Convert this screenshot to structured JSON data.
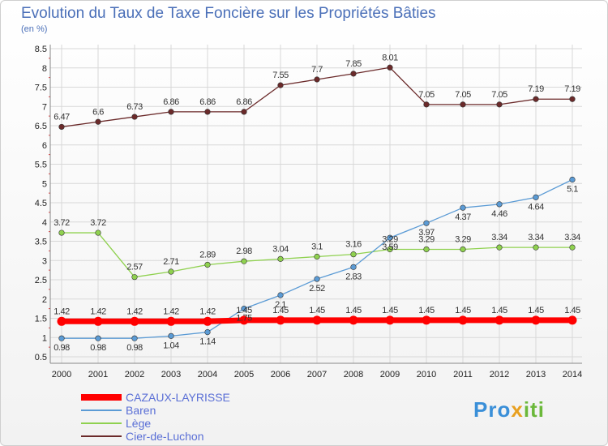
{
  "header": {
    "title": "Evolution du Taux de Taxe Foncière sur les Propriétés Bâties",
    "unit": "(en %)"
  },
  "logo": {
    "text_a": "Pro",
    "text_b": "x",
    "text_c": "iti"
  },
  "chart_data": {
    "type": "line",
    "title": "Evolution du Taux de Taxe Foncière sur les Propriétés Bâties",
    "ylabel": "(en %)",
    "xlabel": "",
    "ylim": [
      0.5,
      8.5
    ],
    "yticks": [
      "8.5",
      "8",
      "7.5",
      "7",
      "6.5",
      "6",
      "5.5",
      "5",
      "4.5",
      "4",
      "3.5",
      "3",
      "2.5",
      "2",
      "1.5",
      "1",
      "0.5"
    ],
    "categories": [
      "2000",
      "2001",
      "2002",
      "2003",
      "2004",
      "2005",
      "2006",
      "2007",
      "2008",
      "2009",
      "2010",
      "2011",
      "2012",
      "2013",
      "2014"
    ],
    "series": [
      {
        "name": "CAZAUX-LAYRISSE",
        "color": "#ff0000",
        "values": [
          1.42,
          1.42,
          1.42,
          1.42,
          1.42,
          1.45,
          1.45,
          1.45,
          1.45,
          1.45,
          1.45,
          1.45,
          1.45,
          1.45,
          1.45
        ],
        "labels": [
          "1.42",
          "1.42",
          "1.42",
          "1.42",
          "1.42",
          "1.45",
          "1.45",
          "1.45",
          "1.45",
          "1.45",
          "1.45",
          "1.45",
          "1.45",
          "1.45",
          "1.45"
        ]
      },
      {
        "name": "Baren",
        "color": "#5b9bd5",
        "values": [
          0.98,
          0.98,
          0.98,
          1.04,
          1.14,
          1.75,
          2.1,
          2.52,
          2.83,
          3.59,
          3.97,
          4.37,
          4.46,
          4.64,
          5.1
        ],
        "labels": [
          "0.98",
          "0.98",
          "0.98",
          "1.04",
          "1.14",
          "1.75",
          "2.1",
          "2.52",
          "2.83",
          "3.59",
          "3.97",
          "4.37",
          "4.46",
          "4.64",
          "5.1"
        ]
      },
      {
        "name": "Lège",
        "color": "#8fd14f",
        "values": [
          3.72,
          3.72,
          2.57,
          2.71,
          2.89,
          2.98,
          3.04,
          3.1,
          3.16,
          3.29,
          3.29,
          3.29,
          3.34,
          3.34,
          3.34
        ],
        "labels": [
          "3.72",
          "3.72",
          "2.57",
          "2.71",
          "2.89",
          "2.98",
          "3.04",
          "3.1",
          "3.16",
          "3.29",
          "3.29",
          "3.29",
          "3.34",
          "3.34",
          "3.34"
        ]
      },
      {
        "name": "Cier-de-Luchon",
        "color": "#6b2a2a",
        "values": [
          6.47,
          6.6,
          6.73,
          6.86,
          6.86,
          6.86,
          7.55,
          7.7,
          7.85,
          8.01,
          7.05,
          7.05,
          7.05,
          7.19,
          7.19
        ],
        "labels": [
          "6.47",
          "6.6",
          "6.73",
          "6.86",
          "6.86",
          "6.86",
          "7.55",
          "7.7",
          "7.85",
          "8.01",
          "7.05",
          "7.05",
          "7.05",
          "7.19",
          "7.19"
        ]
      }
    ]
  }
}
